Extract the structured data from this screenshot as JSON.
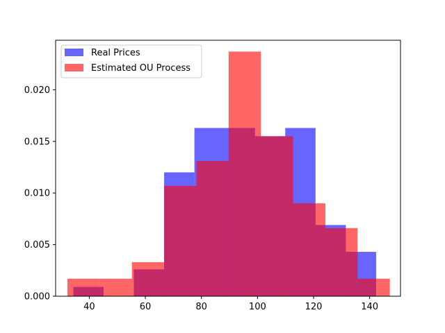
{
  "chart_data": {
    "type": "histogram",
    "title": "",
    "xlabel": "",
    "ylabel": "",
    "xlim": [
      28,
      151
    ],
    "ylim": [
      0,
      0.0248
    ],
    "x_ticks": [
      40,
      60,
      80,
      100,
      120,
      140
    ],
    "y_ticks": [
      0.0,
      0.005,
      0.01,
      0.015,
      0.02
    ],
    "y_tick_labels": [
      "0.000",
      "0.005",
      "0.010",
      "0.015",
      "0.020"
    ],
    "legend": {
      "placement": "upper-left"
    },
    "series": [
      {
        "name": "Real Prices",
        "color": "#0000ff",
        "alpha": 0.6,
        "bins": [
          {
            "x0": 34.3,
            "x1": 45.1,
            "value": 0.0009
          },
          {
            "x0": 45.1,
            "x1": 55.9,
            "value": 0.0
          },
          {
            "x0": 55.9,
            "x1": 66.7,
            "value": 0.0026
          },
          {
            "x0": 66.7,
            "x1": 77.5,
            "value": 0.012
          },
          {
            "x0": 77.5,
            "x1": 88.3,
            "value": 0.0163
          },
          {
            "x0": 88.3,
            "x1": 99.1,
            "value": 0.0163
          },
          {
            "x0": 99.1,
            "x1": 109.9,
            "value": 0.0155
          },
          {
            "x0": 109.9,
            "x1": 120.7,
            "value": 0.0163
          },
          {
            "x0": 120.7,
            "x1": 131.5,
            "value": 0.0069
          },
          {
            "x0": 131.5,
            "x1": 142.3,
            "value": 0.0043
          }
        ]
      },
      {
        "name": "Estimated OU Process",
        "color": "#ff0000",
        "alpha": 0.6,
        "bins": [
          {
            "x0": 32.2,
            "x1": 43.7,
            "value": 0.0017
          },
          {
            "x0": 43.7,
            "x1": 55.2,
            "value": 0.0017
          },
          {
            "x0": 55.2,
            "x1": 66.7,
            "value": 0.0033
          },
          {
            "x0": 66.7,
            "x1": 78.2,
            "value": 0.0107
          },
          {
            "x0": 78.2,
            "x1": 89.7,
            "value": 0.0131
          },
          {
            "x0": 89.7,
            "x1": 101.2,
            "value": 0.0237
          },
          {
            "x0": 101.2,
            "x1": 112.7,
            "value": 0.0155
          },
          {
            "x0": 112.7,
            "x1": 124.2,
            "value": 0.009
          },
          {
            "x0": 124.2,
            "x1": 135.7,
            "value": 0.0066
          },
          {
            "x0": 135.7,
            "x1": 147.2,
            "value": 0.0017
          }
        ]
      }
    ]
  }
}
